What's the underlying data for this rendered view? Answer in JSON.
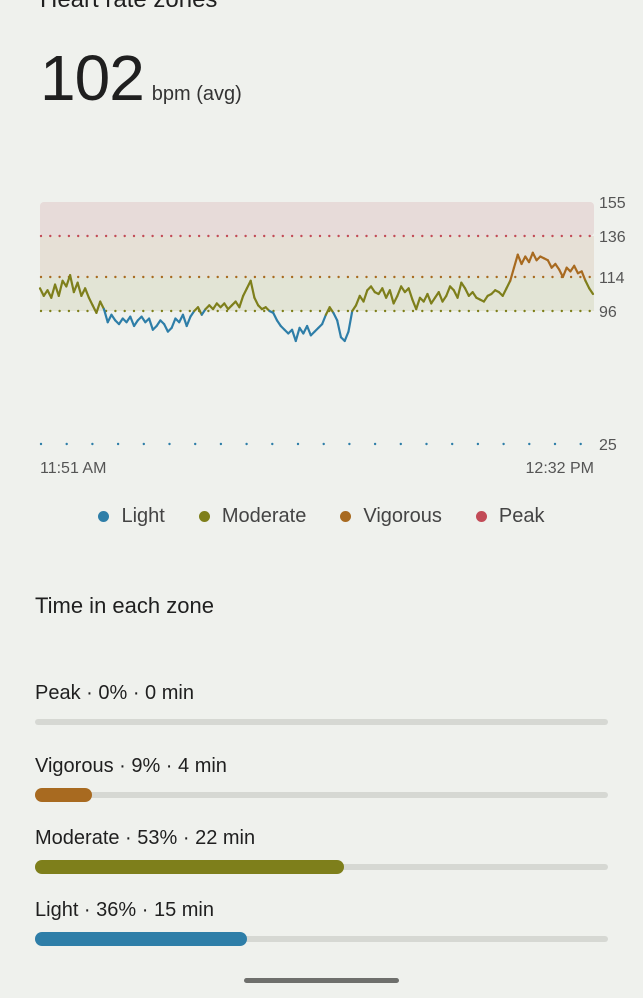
{
  "header": {
    "title": "Heart rate zones"
  },
  "summary": {
    "value": "102",
    "unit": "bpm (avg)"
  },
  "chart_data": {
    "type": "line",
    "x_start_label": "11:51 AM",
    "x_end_label": "12:32 PM",
    "y_ticks": [
      "155",
      "136",
      "114",
      "96",
      "25"
    ],
    "ylim": [
      25,
      155
    ],
    "zone_thresholds": {
      "moderate": 96,
      "vigorous": 114,
      "peak": 136
    },
    "series": [
      {
        "values": [
          108,
          104,
          107,
          103,
          110,
          104,
          112,
          109,
          115,
          106,
          111,
          104,
          108,
          103,
          99,
          95,
          101,
          97,
          90,
          94,
          91,
          89,
          92,
          90,
          93,
          88,
          91,
          93,
          90,
          92,
          86,
          88,
          91,
          89,
          85,
          87,
          92,
          90,
          94,
          88,
          93,
          96,
          98,
          94,
          97,
          99,
          97,
          100,
          98,
          100,
          97,
          99,
          101,
          98,
          104,
          108,
          112,
          103,
          99,
          97,
          98,
          96,
          95,
          91,
          88,
          86,
          84,
          86,
          80,
          87,
          84,
          88,
          83,
          85,
          87,
          89,
          94,
          98,
          95,
          91,
          82,
          80,
          85,
          96,
          99,
          104,
          101,
          107,
          109,
          106,
          105,
          108,
          103,
          107,
          100,
          104,
          109,
          106,
          108,
          102,
          97,
          103,
          101,
          105,
          100,
          103,
          106,
          101,
          104,
          109,
          107,
          103,
          111,
          108,
          104,
          106,
          103,
          102,
          101,
          104,
          105,
          107,
          106,
          104,
          108,
          112,
          119,
          126,
          121,
          125,
          122,
          127,
          123,
          125,
          124,
          123,
          119,
          121,
          118,
          114,
          119,
          117,
          120,
          116,
          117,
          112,
          108,
          105
        ]
      }
    ]
  },
  "legend": [
    {
      "label": "Light",
      "color": "#2e7ea8"
    },
    {
      "label": "Moderate",
      "color": "#7e7f1b"
    },
    {
      "label": "Vigorous",
      "color": "#a86a20"
    },
    {
      "label": "Peak",
      "color": "#c24b57"
    }
  ],
  "zones_section": {
    "title": "Time in each zone",
    "zones": [
      {
        "label": "Peak · 0% · 0 min",
        "percent": 0,
        "fill_fraction": 0.0,
        "color": "#c24b57"
      },
      {
        "label": "Vigorous · 9% · 4 min",
        "percent": 9,
        "fill_fraction": 0.1,
        "color": "#a86a20"
      },
      {
        "label": "Moderate · 53% · 22 min",
        "percent": 53,
        "fill_fraction": 0.54,
        "color": "#7e7f1b"
      },
      {
        "label": "Light · 36% · 15 min",
        "percent": 36,
        "fill_fraction": 0.37,
        "color": "#2e7ea8"
      }
    ]
  }
}
